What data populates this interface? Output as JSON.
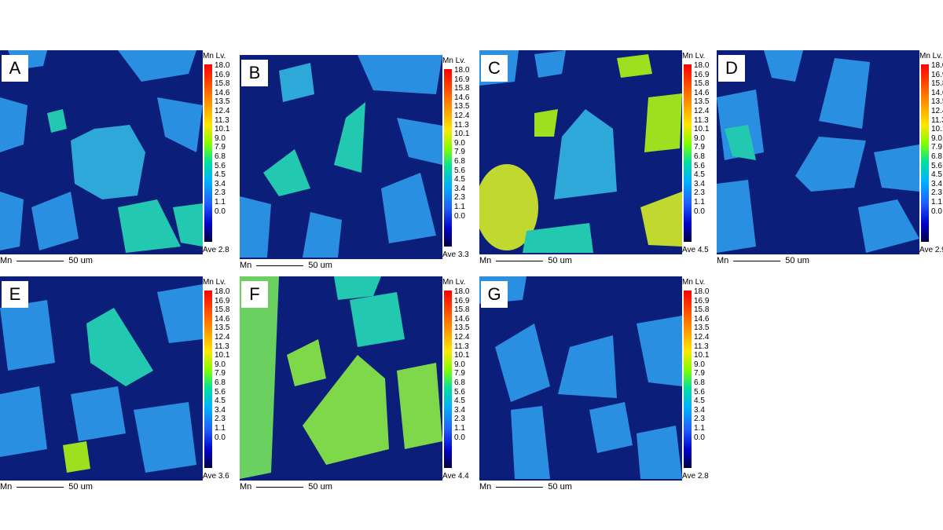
{
  "element": "Mn",
  "scale_title": "Mn Lv.",
  "ticks": [
    "18.0",
    "16.9",
    "15.8",
    "14.6",
    "13.5",
    "12.4",
    "11.3",
    "10.1",
    "9.0",
    "7.9",
    "6.8",
    "5.6",
    "4.5",
    "3.4",
    "2.3",
    "1.1",
    "0.0"
  ],
  "scale_bar_label": "50 um",
  "panels": [
    {
      "letter": "A",
      "ave": "Ave 2.8"
    },
    {
      "letter": "B",
      "ave": "Ave 3.3"
    },
    {
      "letter": "C",
      "ave": "Ave 4.5"
    },
    {
      "letter": "D",
      "ave": "Ave 2.9"
    },
    {
      "letter": "E",
      "ave": "Ave 3.6"
    },
    {
      "letter": "F",
      "ave": "Ave 4.4"
    },
    {
      "letter": "G",
      "ave": "Ave 2.8"
    }
  ],
  "colors": {
    "matrix": "#0b1f7a",
    "particle_low": "#2a8fe0",
    "particle_mid": "#23c8b0",
    "particle_high": "#9de020"
  }
}
